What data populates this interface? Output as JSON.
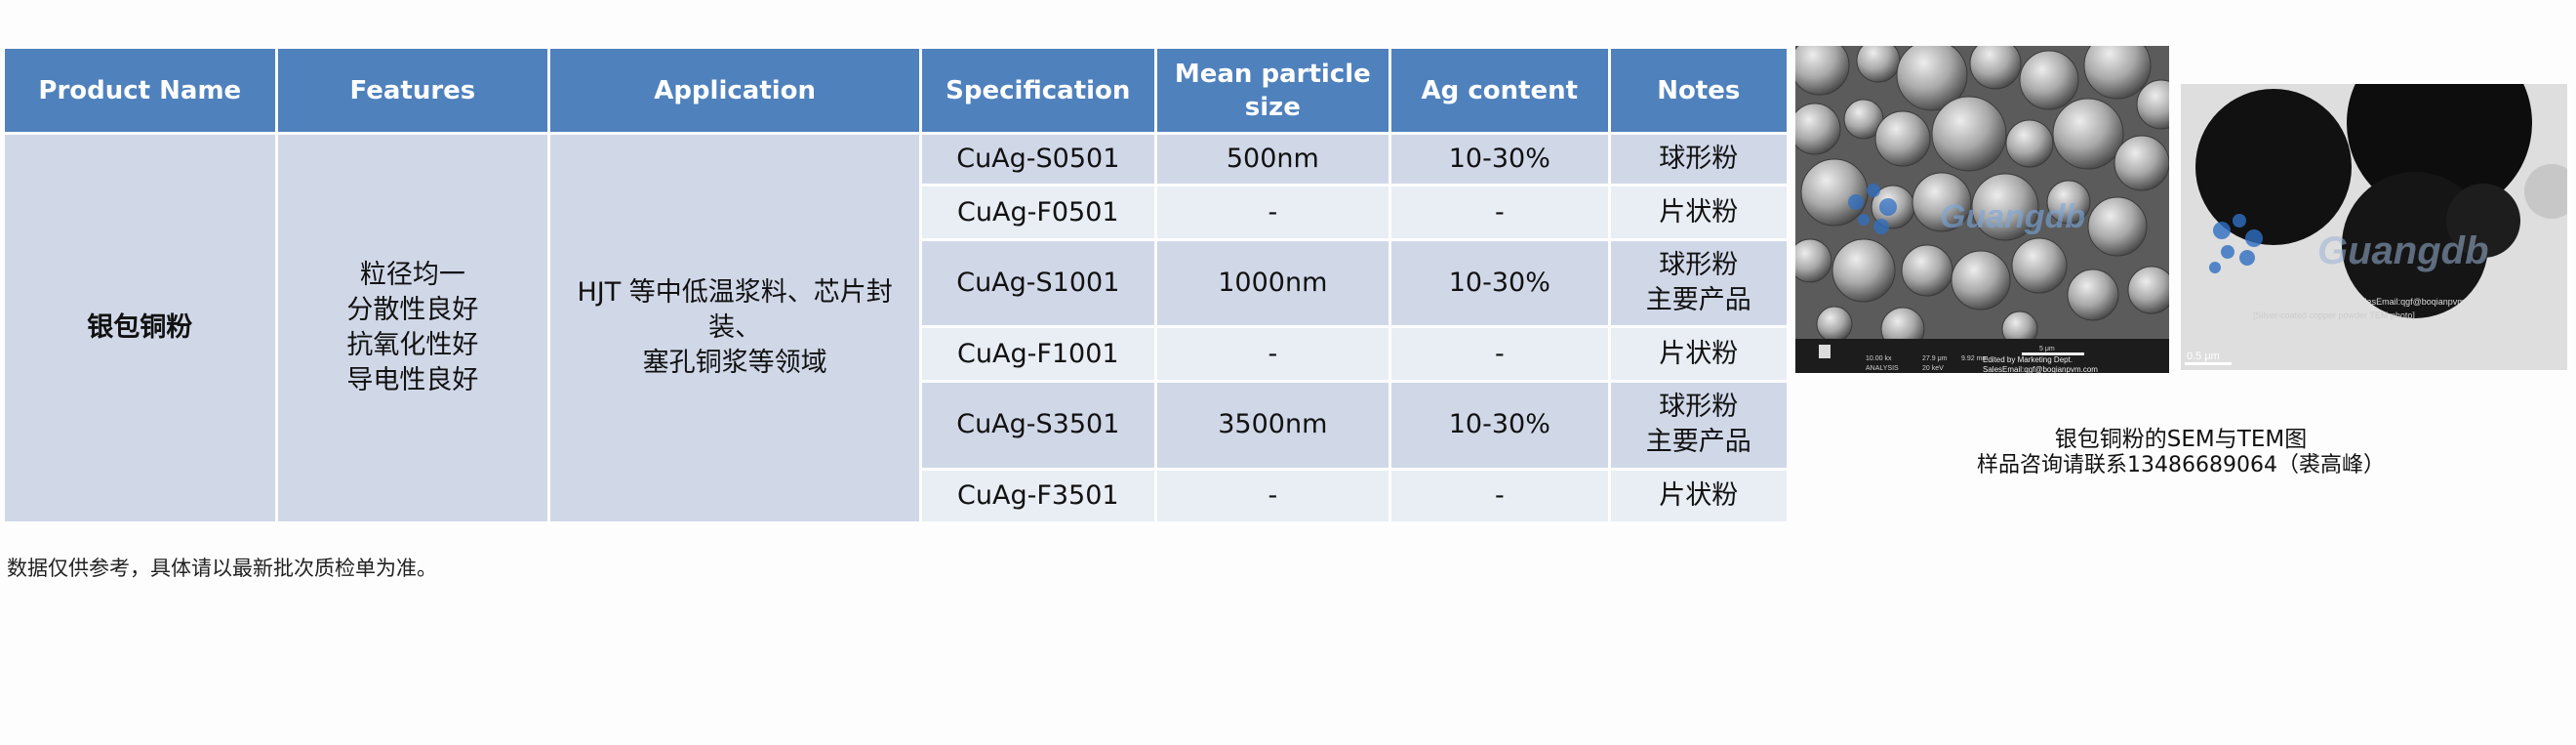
{
  "table": {
    "headers": [
      "Product Name",
      "Features",
      "Application",
      "Specification",
      [
        "Mean particle",
        "size"
      ],
      "Ag content",
      "Notes"
    ],
    "product_name": "银包铜粉",
    "features": [
      "粒径均一",
      "分散性良好",
      "抗氧化性好",
      "导电性良好"
    ],
    "application": [
      "HJT 等中低温浆料、芯片封装、",
      "塞孔铜浆等领域"
    ],
    "rows": [
      {
        "spec": "CuAg-S0501",
        "size": "500nm",
        "ag": "10-30%",
        "notes": [
          "球形粉"
        ]
      },
      {
        "spec": "CuAg-F0501",
        "size": "-",
        "ag": "-",
        "notes": [
          "片状粉"
        ]
      },
      {
        "spec": "CuAg-S1001",
        "size": "1000nm",
        "ag": "10-30%",
        "notes": [
          "球形粉",
          "主要产品"
        ]
      },
      {
        "spec": "CuAg-F1001",
        "size": "-",
        "ag": "-",
        "notes": [
          "片状粉"
        ]
      },
      {
        "spec": "CuAg-S3501",
        "size": "3500nm",
        "ag": "10-30%",
        "notes": [
          "球形粉",
          "主要产品"
        ]
      },
      {
        "spec": "CuAg-F3501",
        "size": "-",
        "ag": "-",
        "notes": [
          "片状粉"
        ]
      }
    ]
  },
  "sem_image": {
    "watermark": "Guangdb",
    "info_bar": {
      "mag": "10.00 kx",
      "hfw": "27.9 μm",
      "wd": "9.92 mm",
      "scale": "5 μm",
      "mode": "ANALYSIS",
      "energy": "20 keV",
      "credit": "Edited by Marketing Dept.",
      "email": "SalesEmail:qgf@boqianpvm.com"
    }
  },
  "tem_image": {
    "watermark": "Guangdb",
    "credit": "Edited by Marketing Dept.SalesEmail:qgf@boqianpvm.com",
    "label": "[Silver-coated copper powder TEM photo]",
    "scale": "0.5 μm"
  },
  "caption": {
    "title": "银包铜粉的SEM与TEM图",
    "contact": "样品咨询请联系13486689064（裘高峰）"
  },
  "footnote": "数据仅供参考，具体请以最新批次质检单为准。"
}
